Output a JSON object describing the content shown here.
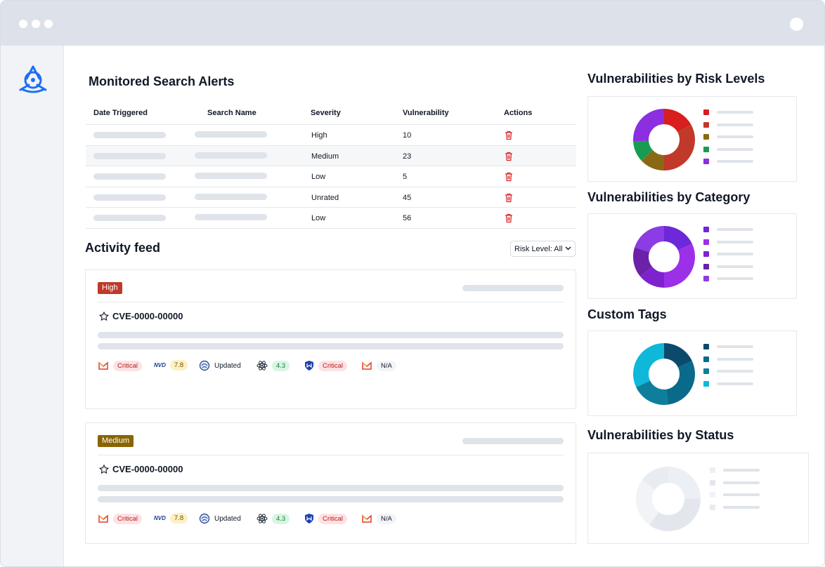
{
  "table": {
    "title": "Monitored Search Alerts",
    "columns": [
      "Date Triggered",
      "Search Name",
      "Severity",
      "Vulnerability",
      "Actions"
    ],
    "rows": [
      {
        "severity": "High",
        "vulnerability": "10"
      },
      {
        "severity": "Medium",
        "vulnerability": "23"
      },
      {
        "severity": "Low",
        "vulnerability": "5"
      },
      {
        "severity": "Unrated",
        "vulnerability": "45"
      },
      {
        "severity": "Low",
        "vulnerability": "56"
      }
    ]
  },
  "feed": {
    "title": "Activity feed",
    "filter_label": "Risk Level: All",
    "cards": [
      {
        "badge": "High",
        "badge_color": "#c0392b",
        "cve": "CVE-0000-00000",
        "tags": {
          "t1": "Critical",
          "nvd": "NVD",
          "t2": "7.8",
          "t3": "Updated",
          "t4": "4.3",
          "t5": "Critical",
          "t6": "N/A"
        }
      },
      {
        "badge": "Medium",
        "badge_color": "#8a6400",
        "cve": "CVE-0000-00000",
        "tags": {
          "t1": "Critical",
          "nvd": "NVD",
          "t2": "7.8",
          "t3": "Updated",
          "t4": "4.3",
          "t5": "Critical",
          "t6": "N/A"
        }
      }
    ]
  },
  "charts": {
    "risk_title": "Vulnerabilities by Risk Levels",
    "category_title": "Vulnerabilities by Category",
    "tags_title": "Custom Tags",
    "status_title": "Vulnerabilities by Status"
  },
  "chart_data": [
    {
      "type": "pie",
      "title": "Vulnerabilities by Risk Levels",
      "colors": [
        "#d81e1e",
        "#c0392b",
        "#8b6914",
        "#179c52",
        "#8b2fe0"
      ],
      "values": [
        17,
        33,
        13,
        11,
        26
      ]
    },
    {
      "type": "pie",
      "title": "Vulnerabilities by Category",
      "colors": [
        "#6d28d9",
        "#9b30e8",
        "#7e22ce",
        "#6b21a8",
        "#8b3ce4"
      ],
      "values": [
        18,
        32,
        14,
        16,
        20
      ]
    },
    {
      "type": "pie",
      "title": "Custom Tags",
      "colors": [
        "#0b4a6b",
        "#0a6a8a",
        "#0d7f9c",
        "#0fb8d8"
      ],
      "values": [
        18,
        30,
        20,
        32
      ]
    },
    {
      "type": "pie",
      "title": "Vulnerabilities by Status",
      "colors": [
        "#eceff3",
        "#e3e7ed",
        "#f1f3f6",
        "#e8ebf0"
      ],
      "values": [
        25,
        35,
        25,
        15
      ]
    }
  ],
  "colors": {
    "accent": "#2563eb",
    "danger": "#dc2626"
  }
}
